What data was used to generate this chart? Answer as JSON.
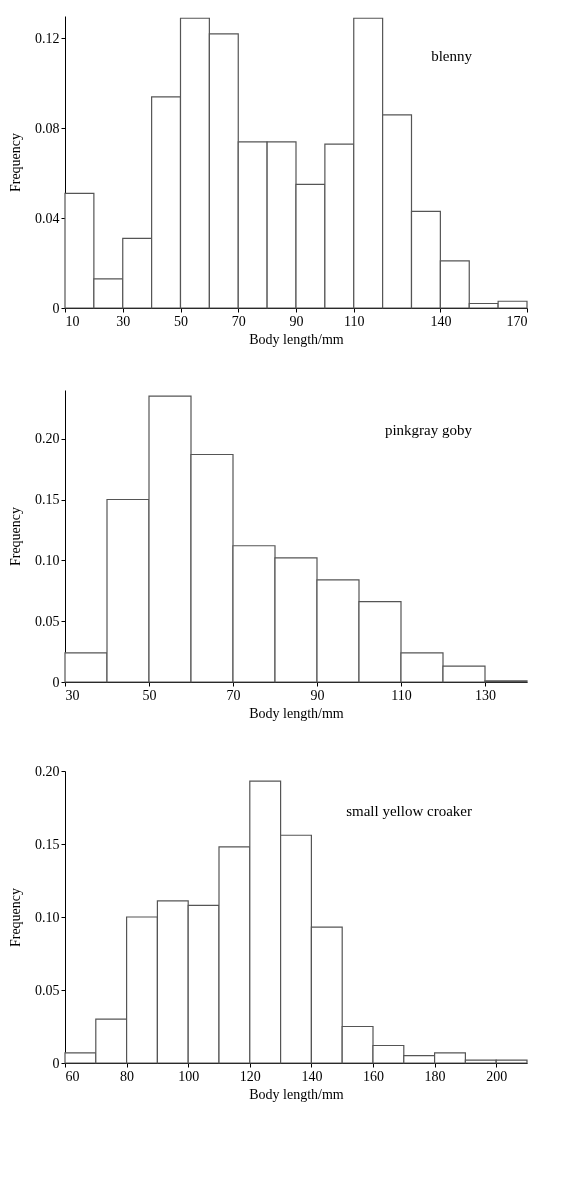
{
  "chart_data": [
    {
      "type": "histogram",
      "xlabel": "Body length/mm",
      "ylabel": "Frequency",
      "annotations": [
        "blenny"
      ],
      "bins": [
        10,
        20,
        30,
        40,
        50,
        60,
        70,
        80,
        90,
        100,
        110,
        120,
        130,
        140,
        150,
        160,
        170
      ],
      "values": [
        0.051,
        0.013,
        0.031,
        0.094,
        0.129,
        0.122,
        0.074,
        0.074,
        0.055,
        0.073,
        0.129,
        0.086,
        0.043,
        0.021,
        0.002,
        0.003
      ],
      "xlim": [
        10,
        170
      ],
      "xticks": [
        10,
        30,
        50,
        70,
        90,
        110,
        140,
        170
      ],
      "ylim": [
        0,
        0.13
      ],
      "yticks": [
        0,
        0.04,
        0.08,
        0.12
      ]
    },
    {
      "type": "histogram",
      "xlabel": "Body length/mm",
      "ylabel": "Frequency",
      "annotations": [
        "pinkgray goby"
      ],
      "bins": [
        30,
        40,
        50,
        60,
        70,
        80,
        90,
        100,
        110,
        120,
        130,
        140
      ],
      "values": [
        0.024,
        0.15,
        0.235,
        0.187,
        0.112,
        0.102,
        0.084,
        0.066,
        0.024,
        0.013,
        0.001
      ],
      "xlim": [
        30,
        140
      ],
      "xticks": [
        30,
        50,
        70,
        90,
        110,
        130
      ],
      "ylim": [
        0,
        0.24
      ],
      "yticks": [
        0,
        {
          "value": 0.05,
          "label": "0.05"
        },
        {
          "value": 0.1,
          "label": "0.10"
        },
        {
          "value": 0.15,
          "label": "0.15"
        },
        {
          "value": 0.2,
          "label": "0.20"
        }
      ]
    },
    {
      "type": "histogram",
      "xlabel": "Body length/mm",
      "ylabel": "Frequency",
      "annotations": [
        "small yellow croaker"
      ],
      "bins": [
        60,
        70,
        80,
        90,
        100,
        110,
        120,
        130,
        140,
        150,
        160,
        170,
        180,
        190,
        200,
        210
      ],
      "values": [
        0.007,
        0.03,
        0.1,
        0.111,
        0.108,
        0.148,
        0.193,
        0.156,
        0.093,
        0.025,
        0.012,
        0.005,
        0.007,
        0.002,
        0.002
      ],
      "xlim": [
        60,
        210
      ],
      "xticks": [
        60,
        80,
        100,
        120,
        140,
        160,
        180,
        200
      ],
      "ylim": [
        0,
        0.2
      ],
      "yticks": [
        0,
        {
          "value": 0.05,
          "label": "0.05"
        },
        {
          "value": 0.1,
          "label": "0.10"
        },
        {
          "value": 0.15,
          "label": "0.15"
        },
        {
          "value": 0.2,
          "label": "0.20"
        }
      ]
    }
  ]
}
